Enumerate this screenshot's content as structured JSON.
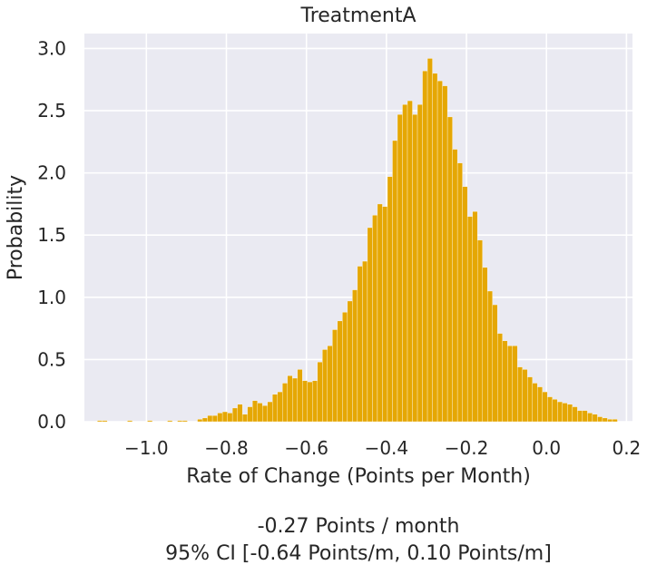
{
  "chart_data": {
    "type": "bar",
    "title": "TreatmentA",
    "xlabel": "Rate of Change (Points per Month)",
    "ylabel": "Probability",
    "xlim": [
      -1.155,
      0.215
    ],
    "ylim": [
      0,
      3.12
    ],
    "xticks": [
      -1.0,
      -0.8,
      -0.6,
      -0.4,
      -0.2,
      0.0,
      0.2
    ],
    "xtick_labels": [
      "−1.0",
      "−0.8",
      "−0.6",
      "−0.4",
      "−0.2",
      "0.0",
      "0.2"
    ],
    "yticks": [
      0.0,
      0.5,
      1.0,
      1.5,
      2.0,
      2.5,
      3.0
    ],
    "ytick_labels": [
      "0.0",
      "0.5",
      "1.0",
      "1.5",
      "2.0",
      "2.5",
      "3.0"
    ],
    "bar_color": "#e5a704",
    "background": "#eaeaf2",
    "grid_color": "#ffffff",
    "grid": true,
    "bin_width": 0.0125,
    "bins_start": -1.1225,
    "values": [
      0.01,
      0.01,
      0,
      0,
      0,
      0,
      0.01,
      0,
      0,
      0,
      0.01,
      0,
      0,
      0,
      0.01,
      0,
      0.01,
      0.01,
      0,
      0,
      0.02,
      0.03,
      0.05,
      0.05,
      0.07,
      0.08,
      0.07,
      0.11,
      0.14,
      0.06,
      0.12,
      0.17,
      0.15,
      0.13,
      0.16,
      0.22,
      0.24,
      0.31,
      0.37,
      0.35,
      0.42,
      0.33,
      0.32,
      0.33,
      0.48,
      0.58,
      0.61,
      0.74,
      0.81,
      0.88,
      0.97,
      1.06,
      1.25,
      1.29,
      1.56,
      1.66,
      1.75,
      1.73,
      1.97,
      2.26,
      2.47,
      2.55,
      2.58,
      2.47,
      2.55,
      2.82,
      2.92,
      2.8,
      2.74,
      2.7,
      2.45,
      2.19,
      2.08,
      1.89,
      1.65,
      1.69,
      1.46,
      1.24,
      1.05,
      0.94,
      0.71,
      0.65,
      0.61,
      0.61,
      0.44,
      0.42,
      0.36,
      0.31,
      0.28,
      0.24,
      0.2,
      0.18,
      0.16,
      0.15,
      0.14,
      0.12,
      0.09,
      0.09,
      0.07,
      0.06,
      0.04,
      0.03,
      0.02,
      0.02
    ]
  },
  "caption": {
    "line1": "-0.27 Points / month",
    "line2": "95% CI [-0.64 Points/m, 0.10 Points/m]"
  }
}
